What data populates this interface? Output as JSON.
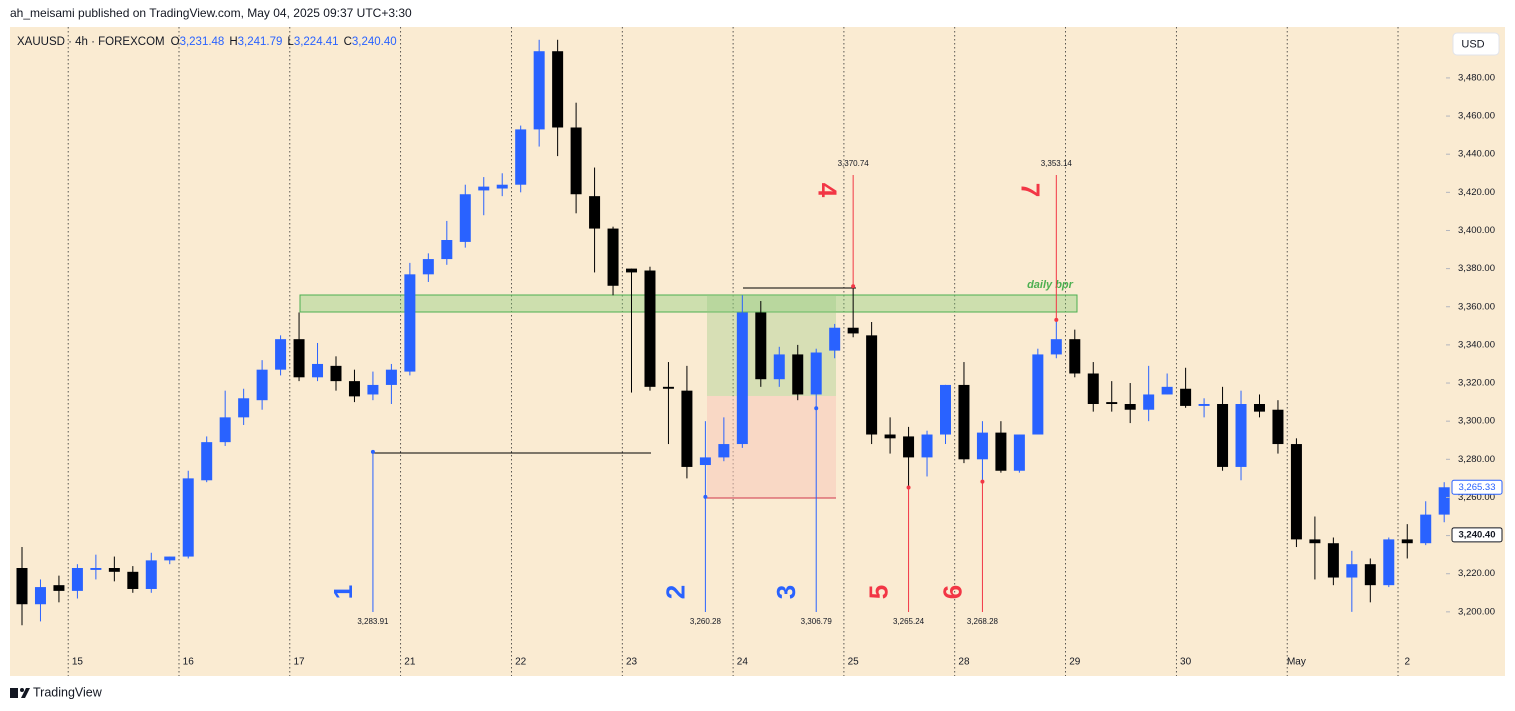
{
  "header": {
    "publisher": "ah_meisami published on TradingView.com, May 04, 2025 09:37 UTC+3:30"
  },
  "footer": {
    "brand": "TradingView"
  },
  "chart_data": {
    "type": "candlestick",
    "symbol": "XAUUSD · 4h · FOREXCOM",
    "ohlc": [
      {
        "key": "O",
        "value": "3,231.48"
      },
      {
        "key": "H",
        "value": "3,241.79"
      },
      {
        "key": "L",
        "value": "3,224.41"
      },
      {
        "key": "C",
        "value": "3,240.40"
      }
    ],
    "currency": "USD",
    "up_color": "#2962ff",
    "down_color": "#000000",
    "categories": [
      null,
      null,
      null,
      "15",
      null,
      null,
      null,
      null,
      null,
      "16",
      null,
      null,
      null,
      null,
      null,
      "17",
      null,
      null,
      null,
      null,
      null,
      "21",
      null,
      null,
      null,
      null,
      null,
      "22",
      null,
      null,
      null,
      null,
      null,
      "23",
      null,
      null,
      null,
      null,
      null,
      "24",
      null,
      null,
      null,
      null,
      null,
      "25",
      null,
      null,
      null,
      null,
      null,
      "28",
      null,
      null,
      null,
      null,
      null,
      "29",
      null,
      null,
      null,
      null,
      null,
      "30",
      null,
      null,
      null,
      null,
      null,
      "May",
      null,
      null,
      null,
      null,
      null,
      "2",
      null,
      null
    ],
    "open": [
      3223,
      3204,
      3214,
      3211,
      3222,
      3223,
      3221,
      3212,
      3227,
      3229,
      3269,
      3289,
      3302,
      3311,
      3327,
      3343,
      3323,
      3329,
      3321,
      3314,
      3319,
      3326,
      3377,
      3385,
      3394,
      3421,
      3422,
      3424,
      3453,
      3494,
      3454,
      3418,
      3401,
      3380,
      3379,
      3318,
      3316,
      3277,
      3281,
      3288,
      3357,
      3322,
      3335,
      3314,
      3337,
      3349,
      3345,
      3293,
      3292,
      3281,
      3293,
      3319,
      3280,
      3294,
      3274,
      3293,
      3335,
      3343,
      3325,
      3310,
      3309,
      3306,
      3314,
      3317,
      3308,
      3309,
      3276,
      3309,
      3306,
      3288,
      3238,
      3236,
      3218,
      3225,
      3214,
      3238,
      3236,
      3251
    ],
    "high": [
      3234,
      3217,
      3219,
      3225,
      3230,
      3229,
      3224,
      3231,
      3229,
      3274,
      3292,
      3316,
      3317,
      3332,
      3345,
      3357,
      3341,
      3334,
      3327,
      3326,
      3330,
      3383,
      3388,
      3405,
      3424,
      3428,
      3430,
      3455,
      3500,
      3500,
      3467,
      3433,
      3402,
      3380,
      3381,
      3331,
      3329,
      3300,
      3302,
      3366,
      3363,
      3339,
      3340,
      3338,
      3351,
      3370.74,
      3352,
      3302,
      3297,
      3295,
      3319,
      3331,
      3300,
      3300,
      3293,
      3338,
      3353.14,
      3348,
      3331,
      3321,
      3320,
      3329,
      3325,
      3328,
      3312,
      3318,
      3316,
      3314,
      3311,
      3291,
      3250,
      3239,
      3232,
      3228,
      3239,
      3246,
      3258,
      3268
    ],
    "low": [
      3193,
      3195,
      3205,
      3207,
      3217,
      3216,
      3210,
      3210,
      3225,
      3228,
      3268,
      3287,
      3298,
      3306,
      3324,
      3321,
      3321,
      3316,
      3310,
      3311,
      3309,
      3324,
      3373,
      3382,
      3391,
      3408,
      3418,
      3420,
      3444,
      3439,
      3409,
      3378,
      3366,
      3315,
      3316,
      3288,
      3270,
      3260.28,
      3279,
      3286,
      3318,
      3318,
      3311,
      3306.79,
      3333,
      3344,
      3288,
      3283,
      3265.24,
      3271,
      3288,
      3278,
      3268.28,
      3273,
      3273,
      3293,
      3333,
      3323,
      3305,
      3305,
      3299,
      3300,
      3314,
      3307,
      3302,
      3274,
      3269,
      3302,
      3283,
      3234,
      3217,
      3214,
      3200,
      3205,
      3213,
      3228,
      3235,
      3247
    ],
    "close": [
      3204,
      3213,
      3211,
      3223,
      3223,
      3221,
      3212,
      3227,
      3229,
      3270,
      3289,
      3302,
      3312,
      3327,
      3343,
      3323,
      3330,
      3321,
      3313,
      3319,
      3327,
      3377,
      3385,
      3395,
      3419,
      3423,
      3424,
      3453,
      3494,
      3454,
      3419,
      3401,
      3371,
      3378,
      3318,
      3317,
      3276,
      3281,
      3288,
      3357,
      3322,
      3335,
      3314,
      3336,
      3349,
      3346,
      3293,
      3291,
      3281,
      3293,
      3319,
      3280,
      3294,
      3274,
      3293,
      3335,
      3343,
      3325,
      3309,
      3309,
      3306,
      3314,
      3318,
      3308,
      3309,
      3276,
      3309,
      3305,
      3288,
      3238,
      3236,
      3218,
      3225,
      3214,
      3238,
      3236,
      3251,
      3265.33
    ],
    "ylim": [
      3180,
      3506.7
    ],
    "yticks": [
      {
        "value": 3200,
        "label": "3,200.00"
      },
      {
        "value": 3220,
        "label": "3,220.00"
      },
      {
        "value": 3240,
        "label": "3,240.00"
      },
      {
        "value": 3260,
        "label": "3,260.00"
      },
      {
        "value": 3280,
        "label": "3,280.00"
      },
      {
        "value": 3300,
        "label": "3,300.00"
      },
      {
        "value": 3320,
        "label": "3,320.00"
      },
      {
        "value": 3340,
        "label": "3,340.00"
      },
      {
        "value": 3360,
        "label": "3,360.00"
      },
      {
        "value": 3380,
        "label": "3,380.00"
      },
      {
        "value": 3400,
        "label": "3,400.00"
      },
      {
        "value": 3420,
        "label": "3,420.00"
      },
      {
        "value": 3440,
        "label": "3,440.00"
      },
      {
        "value": 3460,
        "label": "3,460.00"
      },
      {
        "value": 3480,
        "label": "3,480.00"
      }
    ],
    "price_labels": [
      {
        "value": 3265.33,
        "label": "3,265.33",
        "color": "#2962ff"
      },
      {
        "value": 3240.4,
        "label": "3,240.40",
        "color": "#131722"
      }
    ],
    "zone_label": "daily bpr",
    "markers": [
      {
        "label": "1",
        "x": 19,
        "price": 3283.91,
        "price_label": "3,283.91",
        "color": "#2962ff"
      },
      {
        "label": "2",
        "x": 37,
        "price": 3260.28,
        "price_label": "3,260.28",
        "color": "#2962ff"
      },
      {
        "label": "3",
        "x": 43,
        "price": 3306.79,
        "price_label": "3,306.79",
        "color": "#2962ff"
      },
      {
        "label": "4",
        "x": 45,
        "price": 3370.74,
        "price_label": "3,370.74",
        "color": "#f23645"
      },
      {
        "label": "5",
        "x": 48,
        "price": 3265.24,
        "price_label": "3,265.24",
        "color": "#f23645"
      },
      {
        "label": "6",
        "x": 52,
        "price": 3268.28,
        "price_label": "3,268.28",
        "color": "#f23645"
      },
      {
        "label": "7",
        "x": 56,
        "price": 3353.14,
        "price_label": "3,353.14",
        "color": "#f23645"
      }
    ]
  }
}
